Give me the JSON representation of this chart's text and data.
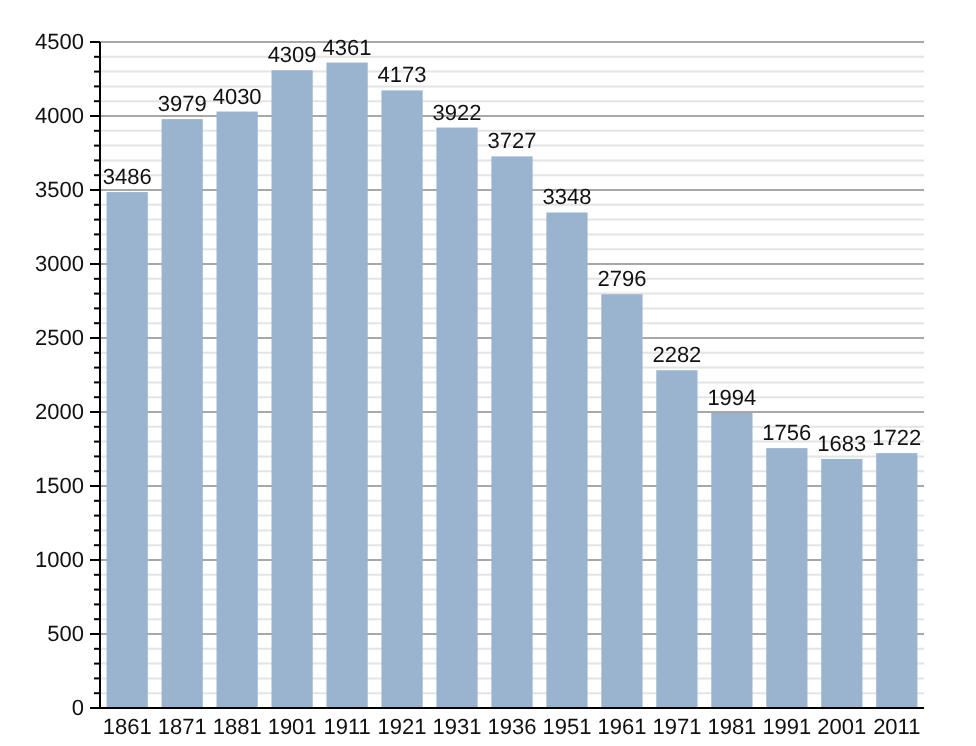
{
  "chart_data": {
    "type": "bar",
    "categories": [
      "1861",
      "1871",
      "1881",
      "1901",
      "1911",
      "1921",
      "1931",
      "1936",
      "1951",
      "1961",
      "1971",
      "1981",
      "1991",
      "2001",
      "2011"
    ],
    "values": [
      3486,
      3979,
      4030,
      4309,
      4361,
      4173,
      3922,
      3727,
      3348,
      2796,
      2282,
      1994,
      1756,
      1683,
      1722
    ],
    "color": "#9ab3cf",
    "data_labels": true,
    "grid": "y",
    "ylim": [
      0,
      4500
    ],
    "yticks": [
      0,
      {
        "value": 100,
        "label": null
      },
      {
        "value": 200,
        "label": null
      },
      {
        "value": 300,
        "label": null
      },
      {
        "value": 400,
        "label": null
      },
      500,
      {
        "value": 600,
        "label": null
      },
      {
        "value": 700,
        "label": null
      },
      {
        "value": 800,
        "label": null
      },
      {
        "value": 900,
        "label": null
      },
      1000,
      {
        "value": 1100,
        "label": null
      },
      {
        "value": 1200,
        "label": null
      },
      {
        "value": 1300,
        "label": null
      },
      {
        "value": 1400,
        "label": null
      },
      1500,
      {
        "value": 1600,
        "label": null
      },
      {
        "value": 1700,
        "label": null
      },
      {
        "value": 1800,
        "label": null
      },
      {
        "value": 1900,
        "label": null
      },
      2000,
      {
        "value": 2100,
        "label": null
      },
      {
        "value": 2200,
        "label": null
      },
      {
        "value": 2300,
        "label": null
      },
      {
        "value": 2400,
        "label": null
      },
      2500,
      {
        "value": 2600,
        "label": null
      },
      {
        "value": 2700,
        "label": null
      },
      {
        "value": 2800,
        "label": null
      },
      {
        "value": 2900,
        "label": null
      },
      3000,
      {
        "value": 3100,
        "label": null
      },
      {
        "value": 3200,
        "label": null
      },
      {
        "value": 3300,
        "label": null
      },
      {
        "value": 3400,
        "label": null
      },
      3500,
      {
        "value": 3600,
        "label": null
      },
      {
        "value": 3700,
        "label": null
      },
      {
        "value": 3800,
        "label": null
      },
      {
        "value": 3900,
        "label": null
      },
      4000,
      {
        "value": 4100,
        "label": null
      },
      {
        "value": 4200,
        "label": null
      },
      {
        "value": 4300,
        "label": null
      },
      {
        "value": 4400,
        "label": null
      },
      4500
    ]
  }
}
